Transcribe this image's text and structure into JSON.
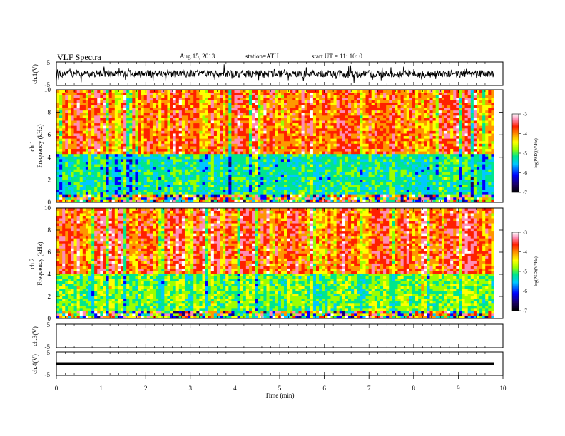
{
  "header": {
    "title": "VLF  Spectra",
    "date": "Aug.15, 2013",
    "station": "station=ATH",
    "start": "start  UT  =    11: 10: 0"
  },
  "colors": {
    "spectrogram_scale": [
      "#1a0066",
      "#0000ff",
      "#00c8ff",
      "#00e68c",
      "#9bff00",
      "#ffff00",
      "#ff9600",
      "#ff2000",
      "#ff8cb4",
      "#ffffff"
    ],
    "trace": "#000000"
  },
  "chart_data": [
    {
      "type": "line",
      "name": "ch1-waveform",
      "ylabel": "ch.1(V)",
      "ylim": [
        -5,
        5
      ],
      "yticks": [
        "5",
        "-5"
      ],
      "xlim": [
        0,
        10
      ],
      "x_extent_min": [
        0,
        9.8
      ],
      "y_band_approx": [
        -1.5,
        1.5
      ]
    },
    {
      "type": "heatmap",
      "name": "ch1-spectrogram",
      "ylabel": "ch.1\nFrequency (kHz)",
      "ylim": [
        0,
        10
      ],
      "yticks": [
        "0",
        "2",
        "4",
        "6",
        "8",
        "10"
      ],
      "xlim": [
        0,
        10
      ],
      "x_extent_min": [
        0,
        9.8
      ],
      "bands_kHz": [
        {
          "from": 0,
          "to": 0.7,
          "level": "mixed"
        },
        {
          "from": 0.7,
          "to": 4.4,
          "level": -5.7
        },
        {
          "from": 4.4,
          "to": 10,
          "level": -4.1
        }
      ],
      "colorbar": {
        "label": "log(PSD)(V²/Hz)",
        "range": [
          -7,
          -3
        ],
        "ticks": [
          "-3",
          "-4",
          "-5",
          "-6",
          "-7"
        ]
      }
    },
    {
      "type": "heatmap",
      "name": "ch2-spectrogram",
      "ylabel": "ch.2\nFrequency (kHz)",
      "ylim": [
        0,
        10
      ],
      "yticks": [
        "0",
        "2",
        "4",
        "6",
        "8",
        "10"
      ],
      "xlim": [
        0,
        10
      ],
      "x_extent_min": [
        0,
        9.8
      ],
      "bands_kHz": [
        {
          "from": 0,
          "to": 0.7,
          "level": "mixed"
        },
        {
          "from": 0.7,
          "to": 4.0,
          "level": -5.3
        },
        {
          "from": 4.0,
          "to": 10,
          "level": -4.0
        }
      ],
      "colorbar": {
        "label": "log(PSD)(V²/Hz)",
        "range": [
          -7,
          -3
        ],
        "ticks": [
          "-3",
          "-4",
          "-5",
          "-6",
          "-7"
        ]
      }
    },
    {
      "type": "line",
      "name": "ch3-waveform",
      "ylabel": "ch.3(V)",
      "ylim": [
        -5,
        5
      ],
      "yticks": [
        "5",
        "-5"
      ],
      "xlim": [
        0,
        10
      ],
      "x_extent_min": [
        0,
        9.8
      ],
      "level_V": 0
    },
    {
      "type": "line",
      "name": "ch4-waveform",
      "ylabel": "ch.4(V)",
      "ylim": [
        -5,
        5
      ],
      "yticks": [
        "5",
        "-5"
      ],
      "xlim": [
        0,
        10
      ],
      "x_extent_min": [
        0,
        9.8
      ],
      "level_V": 0
    }
  ],
  "xaxis": {
    "label": "Time  (min)",
    "ticks": [
      "0",
      "1",
      "2",
      "3",
      "4",
      "5",
      "6",
      "7",
      "8",
      "9",
      "10"
    ]
  }
}
